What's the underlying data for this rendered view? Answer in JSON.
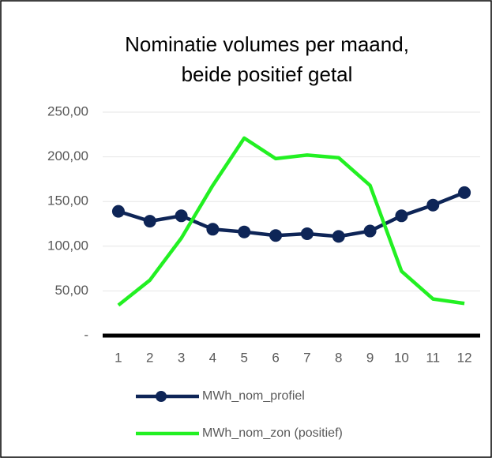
{
  "chart_data": {
    "type": "line",
    "title": [
      "Nominatie volumes per maand,",
      "beide positief  getal"
    ],
    "categories": [
      "1",
      "2",
      "3",
      "4",
      "5",
      "6",
      "7",
      "8",
      "9",
      "10",
      "11",
      "12"
    ],
    "series": [
      {
        "name": "MWh_nom_profiel",
        "color": "#0e2557",
        "marker": true,
        "values": [
          139,
          128,
          134,
          119,
          116,
          112,
          114,
          111,
          117,
          134,
          146,
          160
        ]
      },
      {
        "name": "MWh_nom_zon (positief)",
        "color": "#22f022",
        "marker": false,
        "values": [
          34,
          62,
          109,
          168,
          221,
          198,
          202,
          199,
          168,
          72,
          41,
          36
        ]
      }
    ],
    "ylim": [
      0,
      250
    ],
    "yticks": [
      {
        "value": 0,
        "label": "-"
      },
      {
        "value": 50,
        "label": "50,00"
      },
      {
        "value": 100,
        "label": "100,00"
      },
      {
        "value": 150,
        "label": "150,00"
      },
      {
        "value": 200,
        "label": "200,00"
      },
      {
        "value": 250,
        "label": "250,00"
      }
    ],
    "grid": true
  }
}
